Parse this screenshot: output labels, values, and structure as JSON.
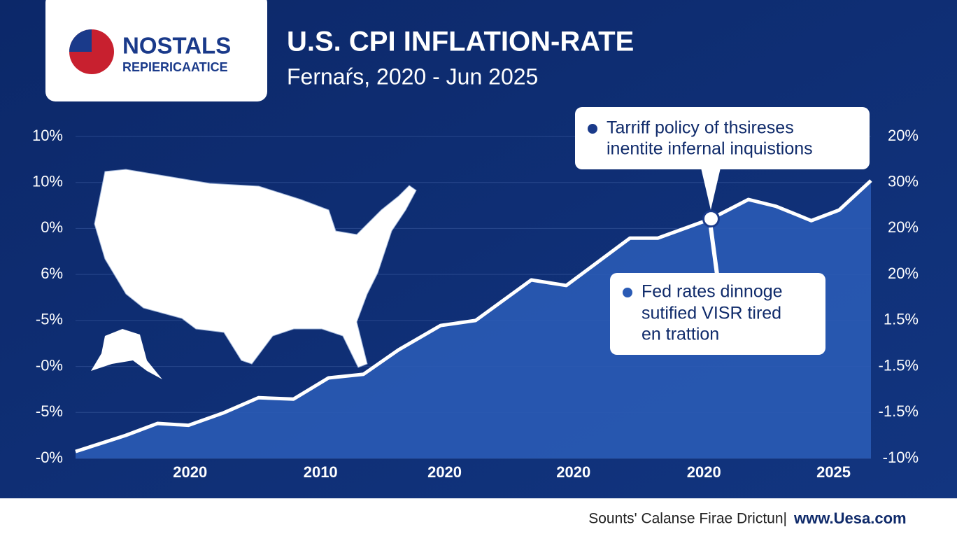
{
  "chart_data": {
    "type": "area",
    "logo": {
      "title": "NOSTALS",
      "subtitle": "REPIERICAATICE"
    },
    "title": "U.S. CPI INFLATION-RATE",
    "subtitle": "Fernaŕs, 2020 - Jun 2025",
    "x": [
      0,
      6.3,
      10.3,
      14.2,
      18.6,
      23.0,
      27.4,
      31.8,
      36.2,
      40.6,
      45.9,
      50.3,
      57.3,
      61.7,
      69.7,
      73.2,
      79.9,
      84.6,
      88.1,
      92.5,
      96.0,
      100
    ],
    "values": [
      0.15,
      0.5,
      0.76,
      0.72,
      0.99,
      1.32,
      1.29,
      1.75,
      1.83,
      2.36,
      2.89,
      3.0,
      3.88,
      3.76,
      4.79,
      4.79,
      5.21,
      5.63,
      5.48,
      5.17,
      5.4,
      6.04
    ],
    "color": "#2a5bb5",
    "line_color": "#ffffff",
    "xlim": [
      0,
      100
    ],
    "xticks": [
      {
        "value": 14.4,
        "label": "2020"
      },
      {
        "value": 30.8,
        "label": "2010"
      },
      {
        "value": 46.4,
        "label": "2020"
      },
      {
        "value": 62.6,
        "label": "2020"
      },
      {
        "value": 79.0,
        "label": "2020"
      },
      {
        "value": 95.3,
        "label": "2025"
      }
    ],
    "ylim": [
      0,
      7
    ],
    "yticks": [
      {
        "value": 0,
        "label": "-0%"
      },
      {
        "value": 1,
        "label": "-5%"
      },
      {
        "value": 2,
        "label": "-0%"
      },
      {
        "value": 3,
        "label": "-5%"
      },
      {
        "value": 4,
        "label": "6%"
      },
      {
        "value": 5,
        "label": "0%"
      },
      {
        "value": 6,
        "label": "10%"
      },
      {
        "value": 7,
        "label": "10%"
      }
    ],
    "y2lim": [
      0,
      7
    ],
    "y2ticks": [
      {
        "value": 0,
        "label": "-10%"
      },
      {
        "value": 1,
        "label": "-1.5%"
      },
      {
        "value": 2,
        "label": "-1.5%"
      },
      {
        "value": 3,
        "label": "1.5%"
      },
      {
        "value": 4,
        "label": "20%"
      },
      {
        "value": 5,
        "label": "20%"
      },
      {
        "value": 6,
        "label": "30%"
      },
      {
        "value": 7,
        "label": "20%"
      }
    ],
    "grid": true,
    "annotations": [
      {
        "lines": [
          "Tarriff policy of thsireses",
          "inentite infernal inquistions"
        ]
      },
      {
        "lines": [
          "Fed rates dinnoge",
          "sutified VISR tired",
          "en trattion"
        ]
      }
    ],
    "footer": {
      "source": "Sounts' Calanse Firae Drictun|",
      "url": "www.Uesa.com"
    }
  }
}
